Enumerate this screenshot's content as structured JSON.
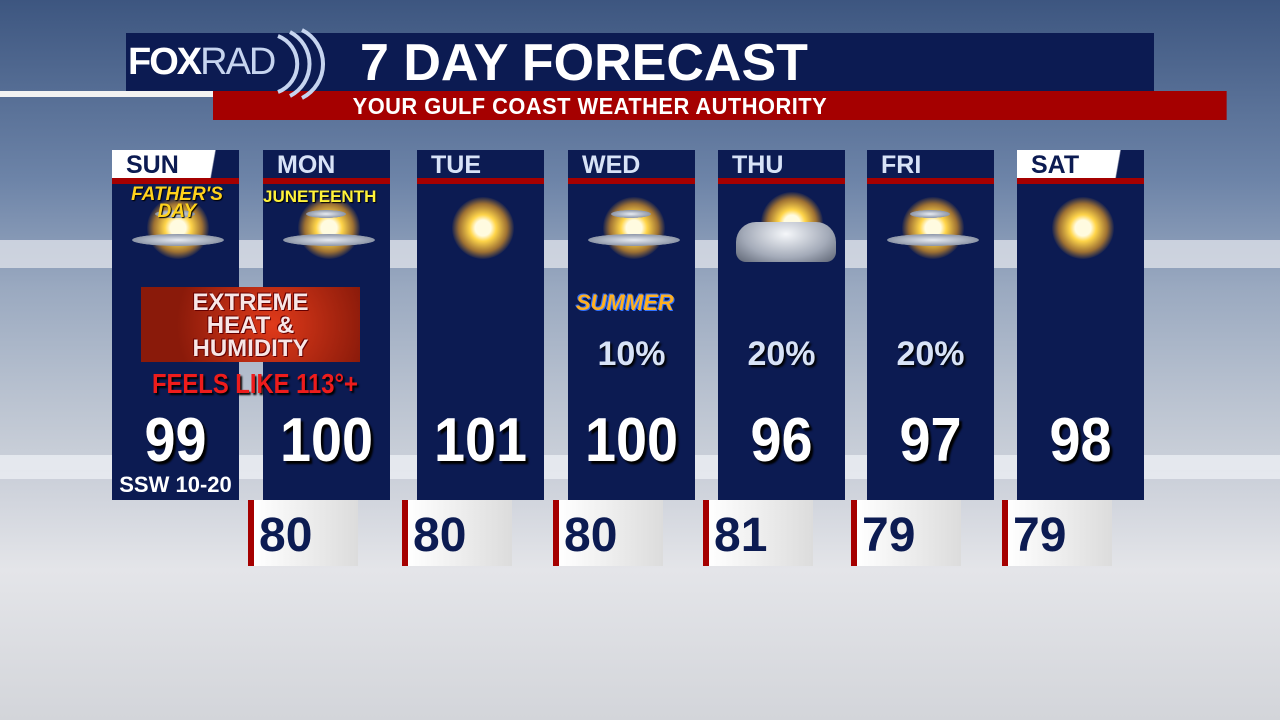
{
  "header": {
    "logo_fox": "FOX",
    "logo_rad": "RAD",
    "title": "7 DAY FORECAST",
    "subtitle": "YOUR GULF COAST WEATHER AUTHORITY"
  },
  "alert": {
    "heat_line1": "EXTREME",
    "heat_line2": "HEAT &",
    "heat_line3": "HUMIDITY",
    "feels_like": "FEELS LIKE 113°+"
  },
  "colors": {
    "navy": "#0c1b52",
    "red": "#a50000"
  },
  "days": [
    {
      "day": "SUN",
      "icon": "partly-sunny-icon",
      "note": "FATHER'S DAY",
      "high": "99",
      "wind": "SSW 10-20"
    },
    {
      "day": "MON",
      "icon": "partly-sunny-icon",
      "note": "JUNETEENTH",
      "high": "100",
      "low": "80"
    },
    {
      "day": "TUE",
      "icon": "sunny-icon",
      "high": "101",
      "low": "80"
    },
    {
      "day": "WED",
      "icon": "partly-sunny-icon",
      "note": "SUMMER",
      "pop": "10%",
      "high": "100",
      "low": "80"
    },
    {
      "day": "THU",
      "icon": "mostly-cloudy-icon",
      "pop": "20%",
      "high": "96",
      "low": "81"
    },
    {
      "day": "FRI",
      "icon": "partly-sunny-icon",
      "pop": "20%",
      "high": "97",
      "low": "79"
    },
    {
      "day": "SAT",
      "icon": "sunny-icon",
      "high": "98",
      "low": "79"
    }
  ]
}
